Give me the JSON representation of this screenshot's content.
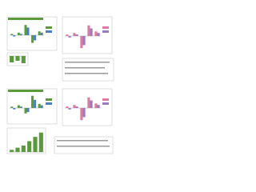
{
  "panels": [
    {
      "type": "bar",
      "ylim": [
        -10,
        10
      ],
      "series": [
        {
          "color": "#5a9a3c",
          "values": [
            1,
            2,
            8,
            -6,
            3
          ]
        },
        {
          "color": "#4a7fc0",
          "values": [
            -1,
            1,
            6,
            -4,
            2
          ]
        }
      ]
    },
    {
      "type": "bar",
      "ylim": [
        -10,
        10
      ],
      "series": [
        {
          "color": "#e07aa0",
          "values": [
            1,
            2,
            -8,
            7,
            3
          ]
        },
        {
          "color": "#9a7ac0",
          "values": [
            -1,
            1,
            -6,
            5,
            2
          ]
        }
      ]
    },
    {
      "type": "bar",
      "ylim": [
        -10,
        2
      ],
      "series": [
        {
          "color": "#5a9a3c",
          "values": [
            -8,
            -6,
            -9
          ]
        }
      ]
    },
    {
      "type": "bar",
      "ylim": [
        -10,
        10
      ],
      "series": [
        {
          "color": "#5a9a3c",
          "values": [
            1,
            2,
            -4,
            9,
            3
          ]
        },
        {
          "color": "#4a7fc0",
          "values": [
            -1,
            1,
            -3,
            6,
            2
          ]
        }
      ]
    },
    {
      "type": "bar",
      "ylim": [
        -10,
        10
      ],
      "series": [
        {
          "color": "#e07aa0",
          "values": [
            1,
            2,
            -8,
            7,
            3
          ]
        },
        {
          "color": "#9a7ac0",
          "values": [
            -1,
            1,
            -6,
            5,
            2
          ]
        }
      ]
    },
    {
      "type": "bar",
      "ylim": [
        0,
        10
      ],
      "series": [
        {
          "color": "#5a9a3c",
          "values": [
            1,
            2,
            3,
            5,
            7,
            9
          ]
        }
      ]
    }
  ]
}
